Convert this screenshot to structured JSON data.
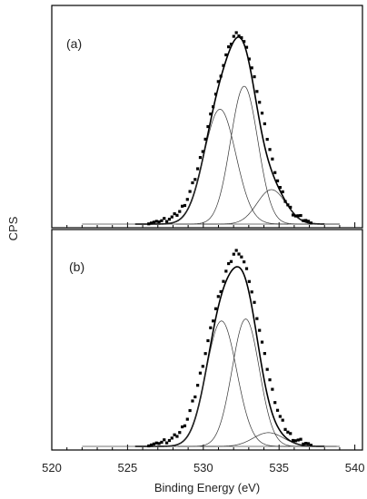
{
  "figure": {
    "ylabel": "CPS",
    "xlabel": "Binding Energy (eV)",
    "x_ticks": [
      "520",
      "525",
      "530",
      "535",
      "540"
    ]
  },
  "chart_data": [
    {
      "type": "line",
      "panel_label": "(a)",
      "xlabel": "Binding Energy (eV)",
      "ylabel": "CPS",
      "xlim": [
        520,
        540.5
      ],
      "ylim": [
        0,
        1.0
      ],
      "grid": false,
      "legend": "none",
      "series": [
        {
          "kind": "measured",
          "x": [
            522.0,
            526.0,
            527.0,
            528.0,
            528.5,
            529.0,
            529.5,
            530.0,
            530.5,
            531.0,
            531.5,
            532.0,
            532.3,
            532.6,
            533.0,
            533.5,
            534.0,
            534.5,
            535.0,
            535.5,
            536.0,
            537.0,
            539.0
          ],
          "y": [
            0.0,
            0.0,
            0.012,
            0.035,
            0.07,
            0.14,
            0.25,
            0.4,
            0.57,
            0.74,
            0.88,
            0.98,
            1.0,
            0.97,
            0.88,
            0.72,
            0.53,
            0.35,
            0.2,
            0.11,
            0.05,
            0.01,
            0.0
          ]
        },
        {
          "kind": "fit-envelope",
          "peaks": [
            {
              "center": 531.1,
              "height": 0.6,
              "width": 1.05
            },
            {
              "center": 532.7,
              "height": 0.72,
              "width": 0.9
            },
            {
              "center": 534.5,
              "height": 0.18,
              "width": 0.95
            }
          ]
        },
        {
          "kind": "component",
          "center": 531.1,
          "height": 0.6,
          "width": 1.05
        },
        {
          "kind": "component",
          "center": 532.7,
          "height": 0.72,
          "width": 0.9
        },
        {
          "kind": "component",
          "center": 534.5,
          "height": 0.18,
          "width": 0.95
        }
      ]
    },
    {
      "type": "line",
      "panel_label": "(b)",
      "xlabel": "Binding Energy (eV)",
      "ylabel": "CPS",
      "xlim": [
        520,
        540.5
      ],
      "ylim": [
        0,
        1.0
      ],
      "grid": false,
      "legend": "none",
      "series": [
        {
          "kind": "measured",
          "x": [
            522.0,
            526.0,
            527.0,
            528.0,
            528.5,
            529.0,
            529.5,
            530.0,
            530.5,
            531.0,
            531.5,
            532.0,
            532.3,
            532.6,
            533.0,
            533.5,
            534.0,
            534.5,
            535.0,
            535.5,
            536.0,
            537.0,
            539.0
          ],
          "y": [
            0.0,
            0.0,
            0.015,
            0.04,
            0.075,
            0.15,
            0.27,
            0.43,
            0.6,
            0.76,
            0.89,
            0.98,
            1.0,
            0.96,
            0.86,
            0.68,
            0.48,
            0.3,
            0.16,
            0.08,
            0.035,
            0.01,
            0.0
          ]
        },
        {
          "kind": "fit-envelope",
          "peaks": [
            {
              "center": 531.2,
              "height": 0.64,
              "width": 1.0
            },
            {
              "center": 532.8,
              "height": 0.65,
              "width": 0.9
            },
            {
              "center": 534.3,
              "height": 0.07,
              "width": 1.0
            }
          ]
        },
        {
          "kind": "component",
          "center": 531.2,
          "height": 0.64,
          "width": 1.0
        },
        {
          "kind": "component",
          "center": 532.8,
          "height": 0.65,
          "width": 0.9
        },
        {
          "kind": "component",
          "center": 534.3,
          "height": 0.07,
          "width": 1.0
        }
      ]
    }
  ]
}
